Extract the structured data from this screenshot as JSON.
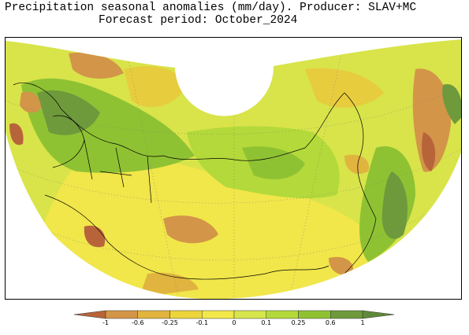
{
  "title": {
    "line1": "Precipitation seasonal anomalies (mm/day). Producer: SLAV+MC",
    "line2": "Forecast period:  October_2024"
  },
  "legend": {
    "labels": [
      "-1",
      "-0.6",
      "-0.25",
      "-0.1",
      "0",
      "0.1",
      "0.25",
      "0.6",
      "1"
    ],
    "colors": [
      "#b8643a",
      "#d39548",
      "#e0b43e",
      "#ecd53b",
      "#f2e84a",
      "#d6e64c",
      "#b3d93a",
      "#8fc233",
      "#6e9a3c",
      "#5f8a3a"
    ],
    "extend": "both"
  },
  "map": {
    "projection": "polar conic sector",
    "variable": "precipitation anomaly",
    "units": "mm/day"
  }
}
